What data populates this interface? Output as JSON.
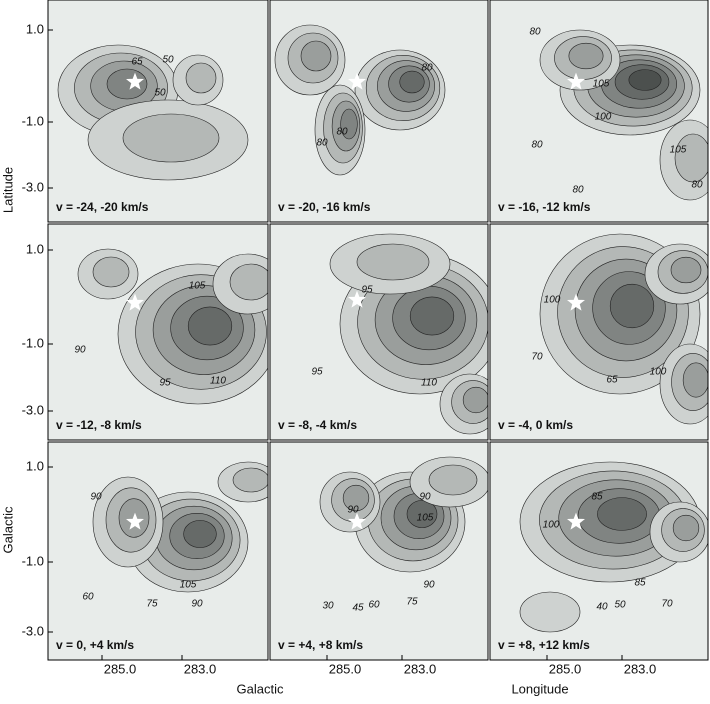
{
  "axes": {
    "x_label_left": "Galactic",
    "x_label_right": "Longitude",
    "y_label_top": "Latitude",
    "y_label_bottom": "Galactic",
    "y_ticks": [
      "1.0",
      "-1.0",
      "-3.0"
    ],
    "x_ticks": [
      "285.0",
      "283.0"
    ]
  },
  "panels": [
    {
      "label": "v = -24, -20 km/s",
      "contour_labels": [
        "65",
        "50",
        "50"
      ]
    },
    {
      "label": "v = -20, -16 km/s",
      "contour_labels": [
        "80",
        "80",
        "80"
      ]
    },
    {
      "label": "v = -16, -12 km/s",
      "contour_labels": [
        "80",
        "105",
        "100",
        "80",
        "105",
        "80",
        "80"
      ]
    },
    {
      "label": "v = -12, -8 km/s",
      "contour_labels": [
        "105",
        "90",
        "95",
        "110"
      ]
    },
    {
      "label": "v = -8, -4 km/s",
      "contour_labels": [
        "95",
        "95",
        "110"
      ]
    },
    {
      "label": "v = -4, 0 km/s",
      "contour_labels": [
        "100",
        "70",
        "100",
        "65"
      ]
    },
    {
      "label": "v = 0, +4 km/s",
      "contour_labels": [
        "90",
        "105",
        "90",
        "75",
        "60"
      ]
    },
    {
      "label": "v = +4, +8 km/s",
      "contour_labels": [
        "90",
        "105",
        "90",
        "90",
        "75",
        "60",
        "45",
        "30"
      ]
    },
    {
      "label": "v = +8, +12 km/s",
      "contour_labels": [
        "85",
        "100",
        "85",
        "70",
        "50",
        "40"
      ]
    }
  ]
}
